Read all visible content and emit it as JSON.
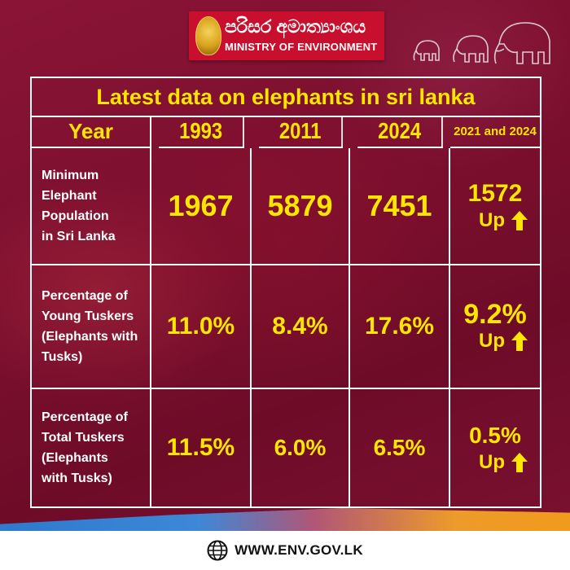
{
  "header": {
    "ministry_native": "පරිසර අමාත්‍යාංශය",
    "ministry_en": "MINISTRY OF ENVIRONMENT"
  },
  "table": {
    "title": "Latest data on elephants in sri lanka",
    "columns": [
      "Year",
      "1993",
      "2011",
      "2024",
      "2021 and 2024"
    ],
    "rows": [
      {
        "label_lines": [
          "Minimum",
          "Elephant",
          "Population",
          "in Sri Lanka"
        ],
        "values": [
          "1967",
          "5879",
          "7451"
        ],
        "change": "1572",
        "change_dir": "Up"
      },
      {
        "label_lines": [
          "Percentage of",
          "Young Tuskers",
          "(Elephants with",
          "Tusks)"
        ],
        "values": [
          "11.0%",
          "8.4%",
          "17.6%"
        ],
        "change": "9.2%",
        "change_dir": "Up"
      },
      {
        "label_lines": [
          "Percentage of",
          "Total Tuskers",
          "(Elephants",
          "with Tusks)"
        ],
        "values": [
          "11.5%",
          "6.0%",
          "6.5%"
        ],
        "change": "0.5%",
        "change_dir": "Up"
      }
    ]
  },
  "footer": {
    "website": "WWW.ENV.GOV.LK"
  },
  "colors": {
    "background": "#7c0f2e",
    "highlight": "#ffe600",
    "logo_red": "#c8102e"
  }
}
